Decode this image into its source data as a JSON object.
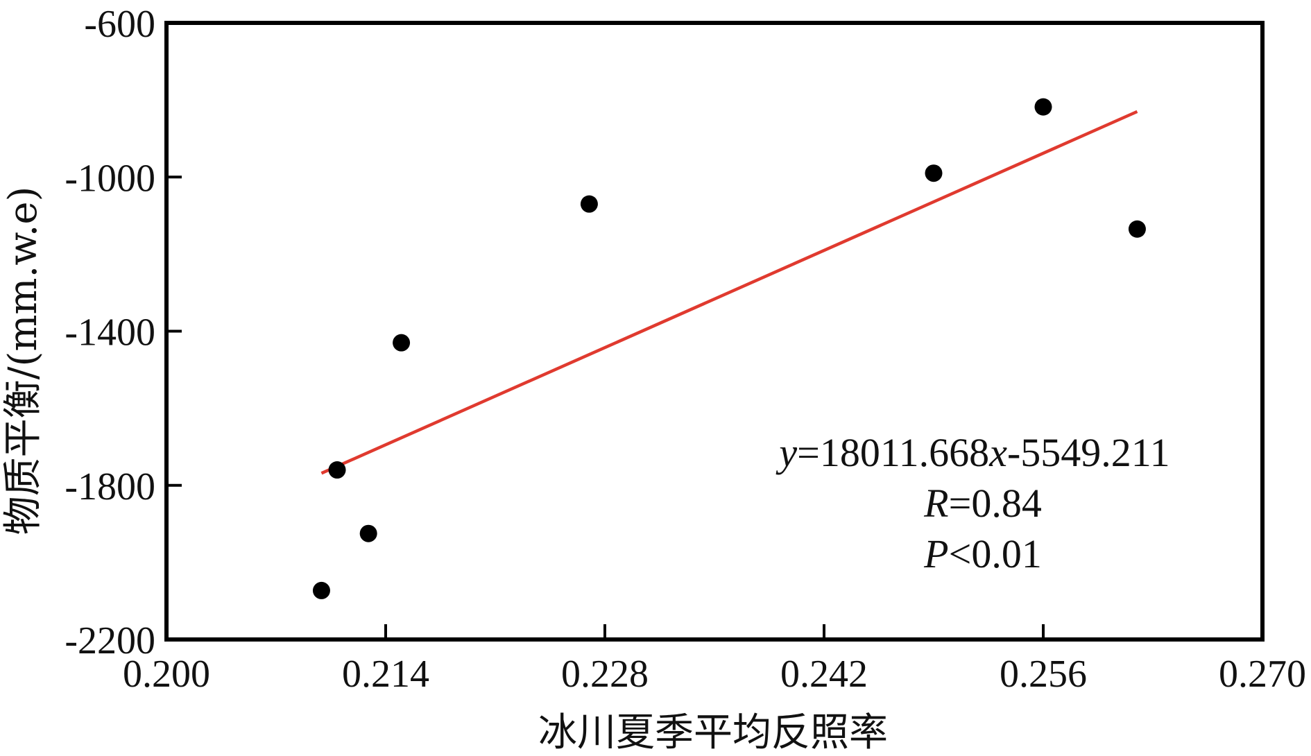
{
  "chart_data": {
    "type": "scatter",
    "xlabel": "冰川夏季平均反照率",
    "ylabel": "物质平衡/(mm.w.e)",
    "xlim": [
      0.2,
      0.27
    ],
    "ylim": [
      -2200,
      -600
    ],
    "x_ticks": [
      "0.200",
      "0.214",
      "0.228",
      "0.242",
      "0.256",
      "0.270"
    ],
    "x_tick_values": [
      0.2,
      0.214,
      0.228,
      0.242,
      0.256,
      0.27
    ],
    "y_ticks": [
      "-600",
      "-1000",
      "-1400",
      "-1800",
      "-2200"
    ],
    "y_tick_values": [
      -600,
      -1000,
      -1400,
      -1800,
      -2200
    ],
    "grid": false,
    "points": [
      {
        "x": 0.2099,
        "y": -2073
      },
      {
        "x": 0.2109,
        "y": -1760
      },
      {
        "x": 0.2129,
        "y": -1925
      },
      {
        "x": 0.215,
        "y": -1430
      },
      {
        "x": 0.227,
        "y": -1070
      },
      {
        "x": 0.249,
        "y": -990
      },
      {
        "x": 0.256,
        "y": -818
      },
      {
        "x": 0.262,
        "y": -1135
      }
    ],
    "fit_line": {
      "slope": 18011.668,
      "intercept": -5549.211,
      "x_range": [
        0.2099,
        0.262
      ],
      "color": "#e03a2f"
    },
    "point_color": "#000000",
    "annotations": {
      "equation": {
        "y": "y",
        "eq1": "=18011.668",
        "x": "x",
        "eq2": "-5549.211"
      },
      "r": {
        "sym": "R",
        "val": "=0.84"
      },
      "p": {
        "sym": "P",
        "val": "<0.01"
      }
    }
  }
}
